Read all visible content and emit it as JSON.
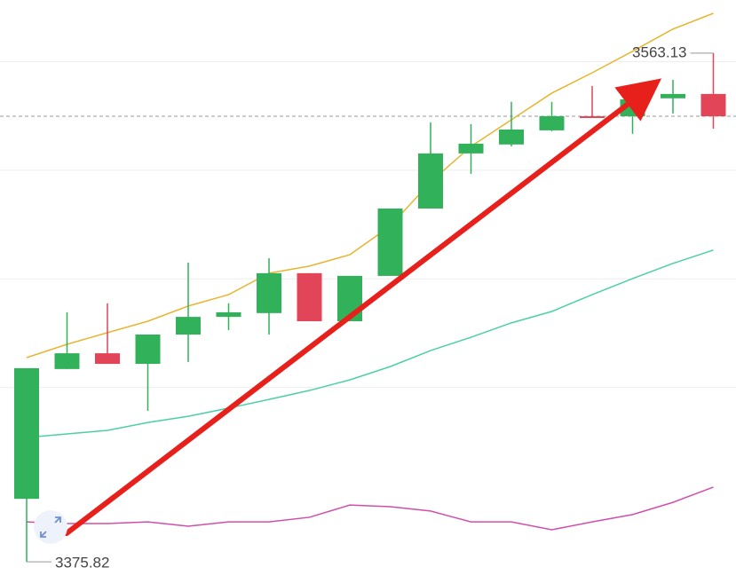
{
  "chart_data": {
    "type": "candlestick",
    "ylim": [
      3368.0,
      3582.7
    ],
    "yticks": [
      3440,
      3480,
      3520,
      3560
    ],
    "grid": true,
    "up_color": "#31b15a",
    "down_color": "#e24458",
    "open": [
      3399.0,
      3446.8,
      3452.6,
      3448.7,
      3459.5,
      3466.0,
      3467.4,
      3482.1,
      3464.4,
      3481.1,
      3505.9,
      3526.2,
      3529.5,
      3534.7,
      3539.9,
      3539.9,
      3546.5,
      3548.1
    ],
    "close": [
      3447.1,
      3452.6,
      3448.7,
      3459.5,
      3466.0,
      3467.7,
      3482.1,
      3464.4,
      3481.1,
      3505.9,
      3526.2,
      3529.8,
      3535.0,
      3539.9,
      3539.3,
      3546.1,
      3548.1,
      3539.9
    ],
    "high": [
      3447.1,
      3467.7,
      3471.0,
      3459.5,
      3486.0,
      3471.0,
      3487.6,
      3482.1,
      3481.1,
      3505.9,
      3537.6,
      3537.0,
      3545.2,
      3545.2,
      3551.0,
      3548.7,
      3553.3,
      3563.13
    ],
    "low": [
      3375.82,
      3446.8,
      3448.7,
      3431.4,
      3449.4,
      3461.1,
      3459.5,
      3464.4,
      3464.4,
      3481.1,
      3505.9,
      3518.7,
      3528.8,
      3534.4,
      3539.3,
      3533.4,
      3540.9,
      3535.3
    ],
    "lines": [
      {
        "color": "#e6b531",
        "values": [
          3451.0,
          3455.9,
          3460.2,
          3464.4,
          3470.0,
          3474.2,
          3482.1,
          3484.7,
          3488.9,
          3499.4,
          3515.7,
          3528.8,
          3538.6,
          3548.4,
          3555.9,
          3563.8,
          3572.0,
          3577.8
        ]
      },
      {
        "color": "#4ccfa6",
        "values": [
          3421.6,
          3422.9,
          3424.2,
          3427.1,
          3429.4,
          3432.4,
          3435.6,
          3438.9,
          3442.8,
          3447.7,
          3453.6,
          3458.5,
          3463.8,
          3468.0,
          3474.2,
          3480.1,
          3485.7,
          3490.6
        ]
      },
      {
        "color": "#d04fa9",
        "values": [
          3390.5,
          3389.9,
          3389.9,
          3390.5,
          3388.9,
          3390.5,
          3390.5,
          3392.2,
          3396.7,
          3396.1,
          3394.5,
          3390.5,
          3390.5,
          3387.6,
          3390.5,
          3393.2,
          3397.7,
          3403.3
        ]
      }
    ],
    "annotations": [
      3563.13,
      3375.82
    ]
  }
}
